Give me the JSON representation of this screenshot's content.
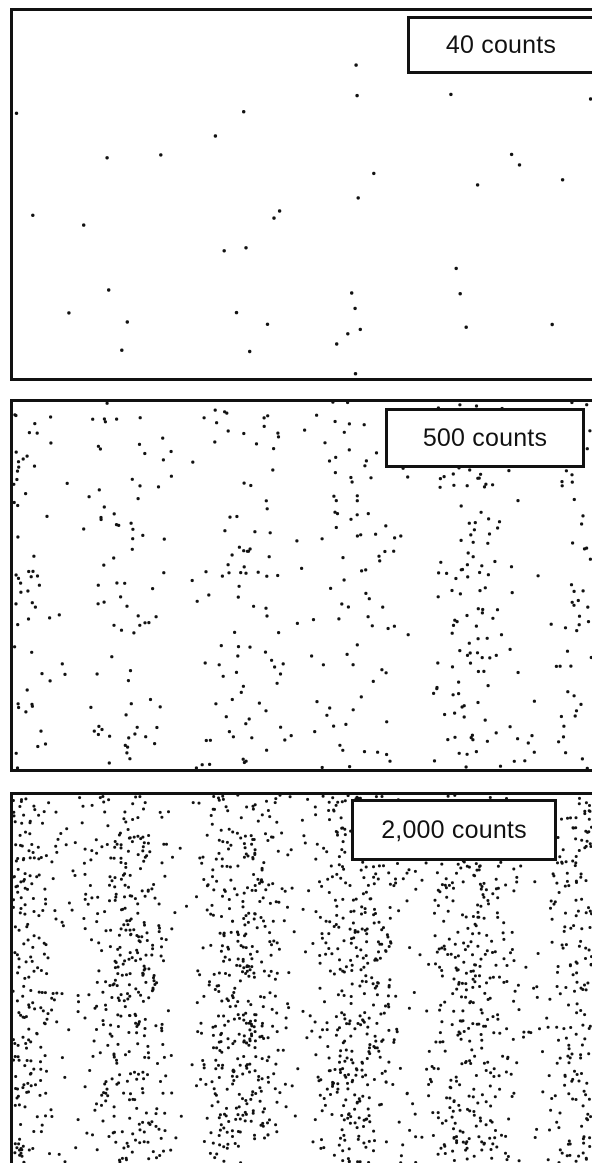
{
  "panels": [
    {
      "label": "40 counts",
      "counts": 40
    },
    {
      "label": "500 counts",
      "counts": 500
    },
    {
      "label": "2,000 counts",
      "counts": 2000
    }
  ],
  "colors": {
    "dot": "#111111",
    "background": "#ffffff",
    "frame": "#111111"
  }
}
